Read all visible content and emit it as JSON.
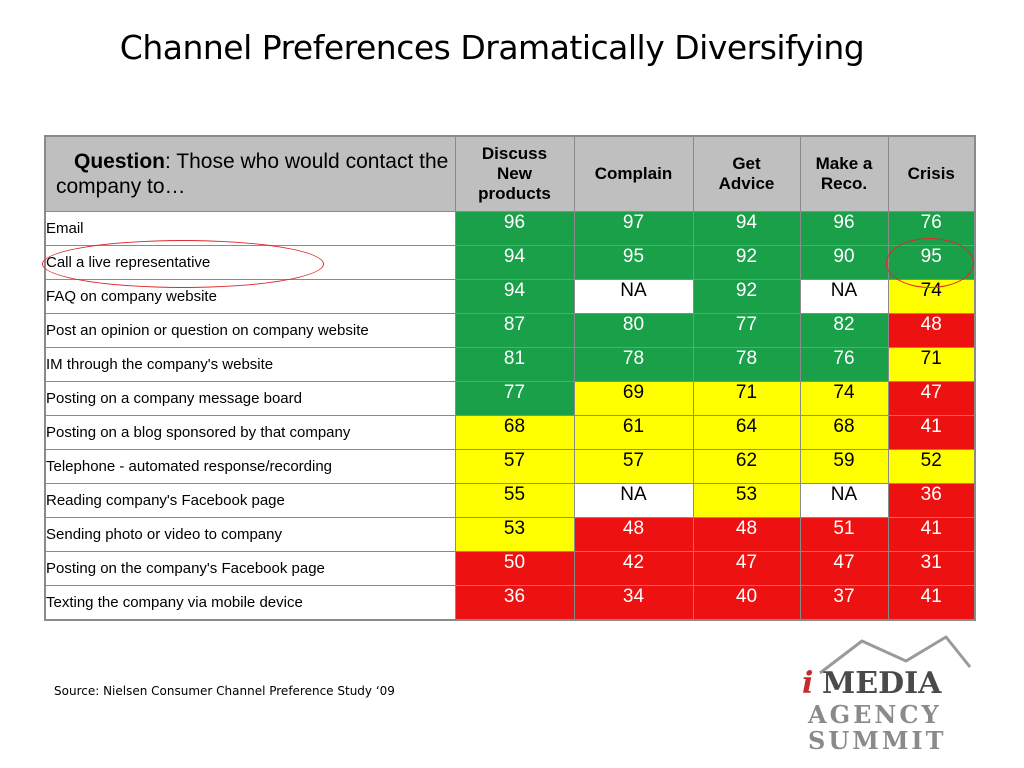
{
  "title": "Channel Preferences Dramatically Diversifying",
  "table": {
    "question_bold": "Question",
    "question_rest": ": Those who would contact  the company to…",
    "columns": [
      {
        "label": "Discuss New products"
      },
      {
        "label": "Complain"
      },
      {
        "label": "Get Advice"
      },
      {
        "label": "Make a Reco."
      },
      {
        "label": "Crisis"
      }
    ],
    "rows": [
      {
        "label": "Email",
        "cells": [
          {
            "v": "96",
            "c": "g"
          },
          {
            "v": "97",
            "c": "g"
          },
          {
            "v": "94",
            "c": "g"
          },
          {
            "v": "96",
            "c": "g"
          },
          {
            "v": "76",
            "c": "g"
          }
        ]
      },
      {
        "label": "Call a live representative",
        "cells": [
          {
            "v": "94",
            "c": "g"
          },
          {
            "v": "95",
            "c": "g"
          },
          {
            "v": "92",
            "c": "g"
          },
          {
            "v": "90",
            "c": "g"
          },
          {
            "v": "95",
            "c": "g"
          }
        ]
      },
      {
        "label": "FAQ on company website",
        "cells": [
          {
            "v": "94",
            "c": "g"
          },
          {
            "v": "NA",
            "c": "w"
          },
          {
            "v": "92",
            "c": "g"
          },
          {
            "v": "NA",
            "c": "w"
          },
          {
            "v": "74",
            "c": "y"
          }
        ]
      },
      {
        "label": "Post an opinion or question on company website",
        "cells": [
          {
            "v": "87",
            "c": "g"
          },
          {
            "v": "80",
            "c": "g"
          },
          {
            "v": "77",
            "c": "g"
          },
          {
            "v": "82",
            "c": "g"
          },
          {
            "v": "48",
            "c": "r"
          }
        ]
      },
      {
        "label": "IM through the company's website",
        "cells": [
          {
            "v": "81",
            "c": "g"
          },
          {
            "v": "78",
            "c": "g"
          },
          {
            "v": "78",
            "c": "g"
          },
          {
            "v": "76",
            "c": "g"
          },
          {
            "v": "71",
            "c": "y"
          }
        ]
      },
      {
        "label": "Posting on a company message board",
        "cells": [
          {
            "v": "77",
            "c": "g"
          },
          {
            "v": "69",
            "c": "y"
          },
          {
            "v": "71",
            "c": "y"
          },
          {
            "v": "74",
            "c": "y"
          },
          {
            "v": "47",
            "c": "r"
          }
        ]
      },
      {
        "label": "Posting on a blog sponsored by that company",
        "cells": [
          {
            "v": "68",
            "c": "y"
          },
          {
            "v": "61",
            "c": "y"
          },
          {
            "v": "64",
            "c": "y"
          },
          {
            "v": "68",
            "c": "y"
          },
          {
            "v": "41",
            "c": "r"
          }
        ]
      },
      {
        "label": "Telephone - automated response/recording",
        "cells": [
          {
            "v": "57",
            "c": "y"
          },
          {
            "v": "57",
            "c": "y"
          },
          {
            "v": "62",
            "c": "y"
          },
          {
            "v": "59",
            "c": "y"
          },
          {
            "v": "52",
            "c": "y"
          }
        ]
      },
      {
        "label": "Reading company's Facebook page",
        "cells": [
          {
            "v": "55",
            "c": "y"
          },
          {
            "v": "NA",
            "c": "w"
          },
          {
            "v": "53",
            "c": "y"
          },
          {
            "v": "NA",
            "c": "w"
          },
          {
            "v": "36",
            "c": "r"
          }
        ]
      },
      {
        "label": "Sending photo or video to  company",
        "cells": [
          {
            "v": "53",
            "c": "y"
          },
          {
            "v": "48",
            "c": "r"
          },
          {
            "v": "48",
            "c": "r"
          },
          {
            "v": "51",
            "c": "r"
          },
          {
            "v": "41",
            "c": "r"
          }
        ]
      },
      {
        "label": "Posting on the company's Facebook page",
        "cells": [
          {
            "v": "50",
            "c": "r"
          },
          {
            "v": "42",
            "c": "r"
          },
          {
            "v": "47",
            "c": "r"
          },
          {
            "v": "47",
            "c": "r"
          },
          {
            "v": "31",
            "c": "r"
          }
        ]
      },
      {
        "label": "Texting the company via mobile device",
        "cells": [
          {
            "v": "36",
            "c": "r"
          },
          {
            "v": "34",
            "c": "r"
          },
          {
            "v": "40",
            "c": "r"
          },
          {
            "v": "37",
            "c": "r"
          },
          {
            "v": "41",
            "c": "r"
          }
        ]
      }
    ]
  },
  "colors": {
    "green": "#1aa049",
    "yellow": "#ffff00",
    "red": "#ee1111",
    "header": "#bfbfbf",
    "highlight": "#e0282e"
  },
  "source": "Source: Nielsen Consumer Channel Preference Study ‘09",
  "logo": {
    "line1_i": "i",
    "line1_rest": "MEDIA",
    "line2": "AGENCY",
    "line3": "SUMMIT"
  }
}
